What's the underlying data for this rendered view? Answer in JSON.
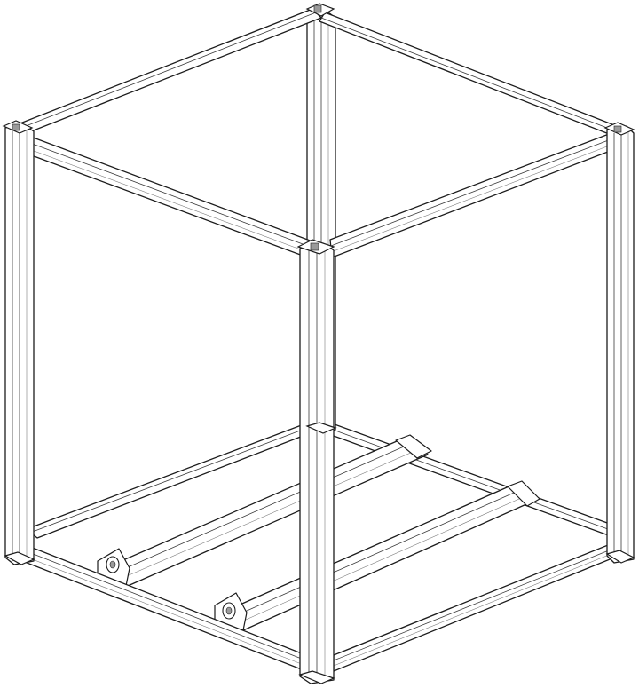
{
  "drawing": {
    "style": {
      "line_color": "#1c1c1c",
      "fill_color": "#ffffff",
      "accent_gray": "#9a9a9a"
    },
    "parts": {
      "vertical_posts": 4,
      "top_beams": 4,
      "bottom_beams": 4,
      "inner_rails": 2,
      "rail_end_brackets": 4,
      "corner_joints": 8
    }
  }
}
